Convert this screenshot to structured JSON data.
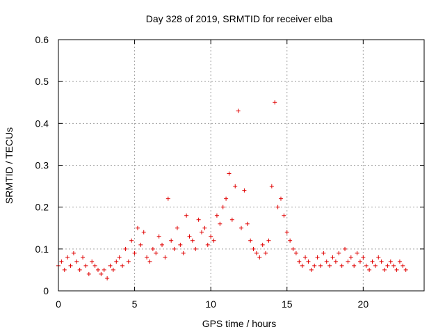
{
  "chart_data": {
    "type": "scatter",
    "title": "Day 328 of 2019, SRMTID for receiver elba",
    "xlabel": "GPS time / hours",
    "ylabel": "SRMTID / TECUs",
    "xlim": [
      0,
      24
    ],
    "ylim": [
      0,
      0.6
    ],
    "xticks": [
      0,
      5,
      10,
      15,
      20
    ],
    "xtick_labels": [
      "0",
      "5",
      "10",
      "15",
      "20"
    ],
    "yticks": [
      0,
      0.1,
      0.2,
      0.3,
      0.4,
      0.5,
      0.6
    ],
    "ytick_labels": [
      "0",
      "0.1",
      "0.2",
      "0.3",
      "0.4",
      "0.5",
      "0.6"
    ],
    "grid": true,
    "marker": "+",
    "color": "#e00000",
    "series": [
      {
        "name": "SRMTID",
        "x": [
          0.0,
          0.2,
          0.4,
          0.6,
          0.8,
          1.0,
          1.2,
          1.4,
          1.6,
          1.8,
          2.0,
          2.2,
          2.4,
          2.6,
          2.8,
          3.0,
          3.2,
          3.4,
          3.6,
          3.8,
          4.0,
          4.2,
          4.4,
          4.6,
          4.8,
          5.0,
          5.2,
          5.4,
          5.6,
          5.8,
          6.0,
          6.2,
          6.4,
          6.6,
          6.8,
          7.0,
          7.2,
          7.4,
          7.6,
          7.8,
          8.0,
          8.2,
          8.4,
          8.6,
          8.8,
          9.0,
          9.2,
          9.4,
          9.6,
          9.8,
          10.0,
          10.2,
          10.4,
          10.6,
          10.8,
          11.0,
          11.2,
          11.4,
          11.6,
          11.8,
          12.0,
          12.2,
          12.4,
          12.6,
          12.8,
          13.0,
          13.2,
          13.4,
          13.6,
          13.8,
          14.0,
          14.2,
          14.4,
          14.6,
          14.8,
          15.0,
          15.2,
          15.4,
          15.6,
          15.8,
          16.0,
          16.2,
          16.4,
          16.6,
          16.8,
          17.0,
          17.2,
          17.4,
          17.6,
          17.8,
          18.0,
          18.2,
          18.4,
          18.6,
          18.8,
          19.0,
          19.2,
          19.4,
          19.6,
          19.8,
          20.0,
          20.2,
          20.4,
          20.6,
          20.8,
          21.0,
          21.2,
          21.4,
          21.6,
          21.8,
          22.0,
          22.2,
          22.4,
          22.6,
          22.8
        ],
        "y": [
          0.06,
          0.07,
          0.05,
          0.08,
          0.06,
          0.09,
          0.07,
          0.05,
          0.08,
          0.06,
          0.04,
          0.07,
          0.06,
          0.05,
          0.04,
          0.05,
          0.03,
          0.06,
          0.05,
          0.07,
          0.08,
          0.06,
          0.1,
          0.07,
          0.12,
          0.09,
          0.15,
          0.11,
          0.14,
          0.08,
          0.07,
          0.1,
          0.09,
          0.13,
          0.11,
          0.08,
          0.22,
          0.12,
          0.1,
          0.15,
          0.11,
          0.09,
          0.18,
          0.13,
          0.12,
          0.1,
          0.17,
          0.14,
          0.15,
          0.11,
          0.13,
          0.12,
          0.18,
          0.16,
          0.2,
          0.22,
          0.28,
          0.17,
          0.25,
          0.43,
          0.15,
          0.24,
          0.16,
          0.12,
          0.1,
          0.09,
          0.08,
          0.11,
          0.09,
          0.12,
          0.25,
          0.45,
          0.2,
          0.22,
          0.18,
          0.14,
          0.12,
          0.1,
          0.09,
          0.07,
          0.06,
          0.08,
          0.07,
          0.05,
          0.06,
          0.08,
          0.06,
          0.09,
          0.07,
          0.06,
          0.08,
          0.07,
          0.09,
          0.06,
          0.1,
          0.07,
          0.08,
          0.06,
          0.09,
          0.07,
          0.08,
          0.06,
          0.05,
          0.07,
          0.06,
          0.08,
          0.07,
          0.05,
          0.06,
          0.07,
          0.06,
          0.05,
          0.07,
          0.06,
          0.05
        ]
      }
    ]
  }
}
